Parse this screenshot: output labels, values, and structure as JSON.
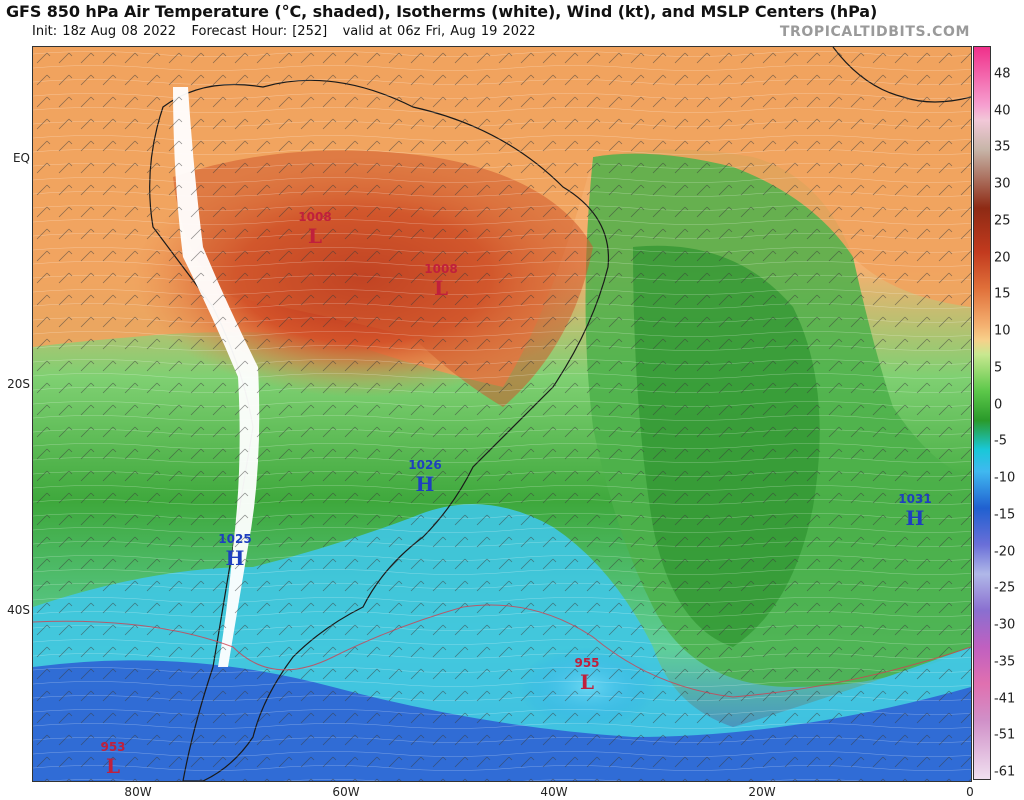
{
  "header": {
    "title": "GFS 850 hPa Air Temperature (°C, shaded), Isotherms (white), Wind (kt), and MSLP Centers (hPa)",
    "init": "Init: 18z Aug 08 2022",
    "forecast_hour": "Forecast Hour: [252]",
    "valid": "valid at 06z Fri, Aug 19 2022",
    "watermark": "TROPICALTIDBITS.COM"
  },
  "axes": {
    "latitude_labels": [
      "EQ",
      "20S",
      "40S"
    ],
    "longitude_labels": [
      "80W",
      "60W",
      "40W",
      "20W",
      "0"
    ]
  },
  "pressure_centers": [
    {
      "type": "L",
      "value": "1008",
      "color": "#c0203c"
    },
    {
      "type": "L",
      "value": "1008",
      "color": "#c0203c"
    },
    {
      "type": "H",
      "value": "1026",
      "color": "#1e3fbf"
    },
    {
      "type": "H",
      "value": "1025",
      "color": "#1e3fbf"
    },
    {
      "type": "H",
      "value": "1031",
      "color": "#1e3fbf"
    },
    {
      "type": "L",
      "value": "955",
      "color": "#c0203c"
    },
    {
      "type": "L",
      "value": "953",
      "color": "#c0203c"
    }
  ],
  "colorbar": {
    "labels": [
      "48",
      "40",
      "35",
      "30",
      "25",
      "20",
      "15",
      "10",
      "5",
      "0",
      "-5",
      "-10",
      "-15",
      "-20",
      "-25",
      "-30",
      "-35",
      "-41",
      "-51",
      "-61"
    ]
  },
  "colors": {
    "hot": "#b5341c",
    "warm": "#e07a3c",
    "mild": "#f0a85c",
    "green": "#2f9a2f",
    "cold_cyan": "#22c4e0",
    "cold_blue": "#2f5fd0",
    "low_marker": "#c0203c",
    "high_marker": "#1e3fbf"
  }
}
